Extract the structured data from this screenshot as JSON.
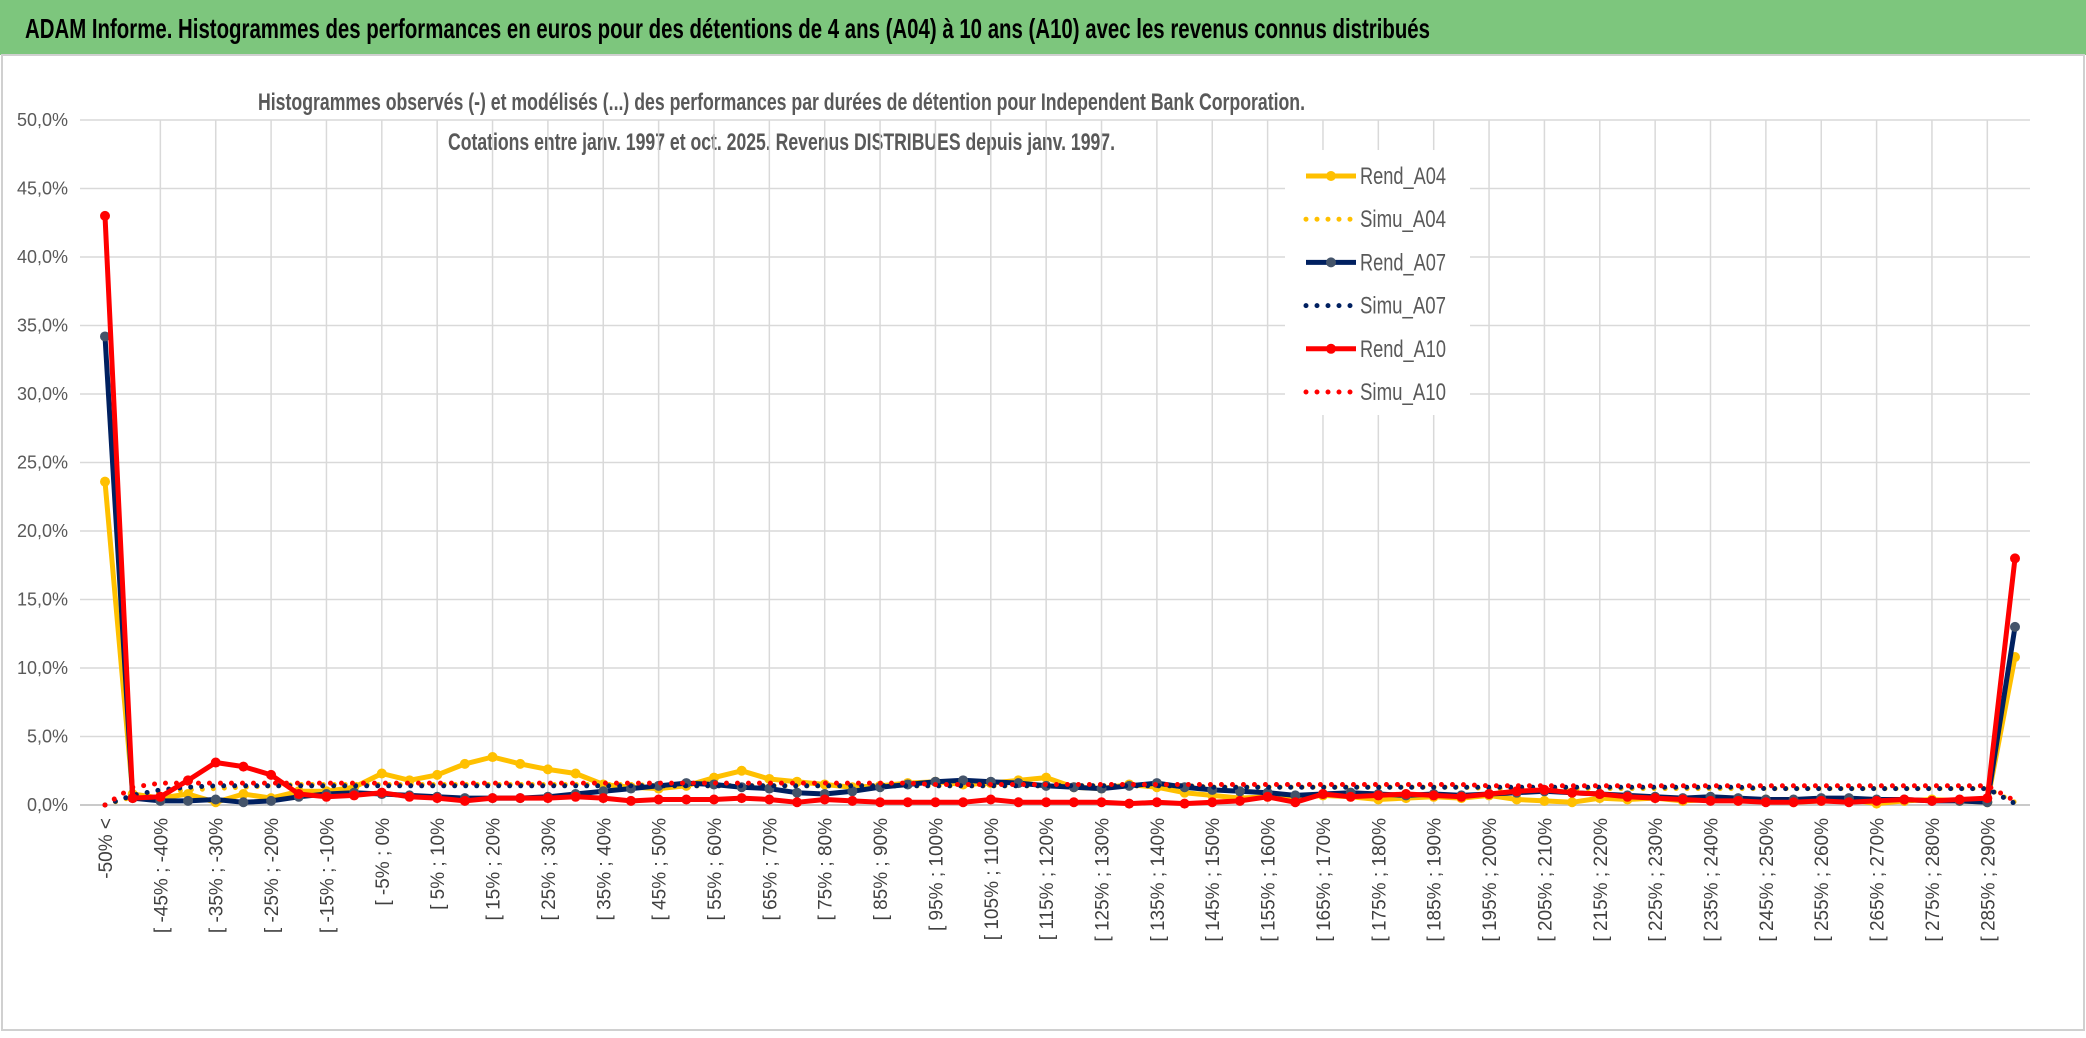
{
  "header": {
    "title": "ADAM Informe. Histogrammes des performances en euros pour des détentions de 4 ans (A04) à 10 ans (A10) avec les revenus connus distribués"
  },
  "chart_data": {
    "type": "line",
    "title": [
      "Histogrammes observés (-) et modélisés (...) des performances par durées de détention pour Independent Bank Corporation.",
      "Cotations entre janv. 1997 et oct. 2025. Revenus DISTRIBUES depuis janv. 1997."
    ],
    "categories": [
      "-50% <",
      null,
      "[ -45% ; -40%",
      null,
      "[ -35% ; -30%",
      null,
      "[ -25% ; -20%",
      null,
      "[ -15% ; -10%",
      null,
      "[ -5% ; 0%",
      null,
      "[ 5% ; 10%",
      null,
      "[ 15% ; 20%",
      null,
      "[ 25% ; 30%",
      null,
      "[ 35% ; 40%",
      null,
      "[ 45% ; 50%",
      null,
      "[ 55% ; 60%",
      null,
      "[ 65% ; 70%",
      null,
      "[ 75% ; 80%",
      null,
      "[ 85% ; 90%",
      null,
      "[ 95% ; 100%",
      null,
      "[ 105% ; 110%",
      null,
      "[ 115% ; 120%",
      null,
      "[ 125% ; 130%",
      null,
      "[ 135% ; 140%",
      null,
      "[ 145% ; 150%",
      null,
      "[ 155% ; 160%",
      null,
      "[ 165% ; 170%",
      null,
      "[ 175% ; 180%",
      null,
      "[ 185% ; 190%",
      null,
      "[ 195% ; 200%",
      null,
      "[ 205% ; 210%",
      null,
      "[ 215% ; 220%",
      null,
      "[ 225% ; 230%",
      null,
      "[ 235% ; 240%",
      null,
      "[ 245% ; 250%",
      null,
      "[ 255% ; 260%",
      null,
      "[ 265% ; 270%",
      null,
      "[ 275% ; 280%",
      null,
      "[ 285% ; 290%",
      null
    ],
    "series": [
      {
        "name": "Rend_A04",
        "color": "#ffc000",
        "line_style": "solid",
        "marker_color": "#ffc000",
        "values": [
          23.6,
          0.8,
          0.5,
          0.8,
          0.2,
          0.8,
          0.5,
          1.0,
          1.0,
          1.3,
          2.3,
          1.8,
          2.2,
          3.0,
          3.5,
          3.0,
          2.6,
          2.3,
          1.5,
          1.3,
          1.2,
          1.4,
          2.0,
          2.5,
          1.9,
          1.7,
          1.5,
          1.3,
          1.4,
          1.6,
          1.7,
          1.5,
          1.6,
          1.8,
          2.0,
          1.3,
          1.2,
          1.5,
          1.3,
          0.9,
          0.7,
          0.5,
          0.6,
          0.5,
          0.7,
          0.6,
          0.4,
          0.5,
          0.6,
          0.5,
          0.7,
          0.4,
          0.3,
          0.2,
          0.5,
          0.4,
          0.5,
          0.3,
          0.4,
          0.3,
          0.4,
          0.2,
          0.3,
          0.4,
          0.1,
          0.3,
          0.4,
          0.3,
          0.2,
          10.8
        ]
      },
      {
        "name": "Simu_A04",
        "color": "#ffc000",
        "line_style": "dotted",
        "values": [
          0,
          0.6,
          0.9,
          1.1,
          1.2,
          1.3,
          1.4,
          1.5,
          1.5,
          1.5,
          1.5,
          1.5,
          1.5,
          1.5,
          1.5,
          1.5,
          1.5,
          1.5,
          1.5,
          1.5,
          1.4,
          1.4,
          1.4,
          1.4,
          1.4,
          1.4,
          1.4,
          1.4,
          1.4,
          1.4,
          1.4,
          1.4,
          1.4,
          1.4,
          1.4,
          1.4,
          1.4,
          1.4,
          1.4,
          1.4,
          1.3,
          1.3,
          1.3,
          1.3,
          1.3,
          1.3,
          1.3,
          1.3,
          1.3,
          1.3,
          1.2,
          1.2,
          1.2,
          1.2,
          1.2,
          1.2,
          1.2,
          1.2,
          1.2,
          1.2,
          1.2,
          1.2,
          1.2,
          1.2,
          1.2,
          1.2,
          1.2,
          1.2,
          1.2,
          0.2
        ]
      },
      {
        "name": "Rend_A07",
        "color": "#002060",
        "line_style": "solid",
        "marker_color": "#44546a",
        "values": [
          34.2,
          0.5,
          0.3,
          0.3,
          0.4,
          0.2,
          0.3,
          0.6,
          0.8,
          0.9,
          0.8,
          0.7,
          0.6,
          0.5,
          0.5,
          0.5,
          0.6,
          0.8,
          1.0,
          1.2,
          1.4,
          1.6,
          1.5,
          1.3,
          1.2,
          0.9,
          0.8,
          1.0,
          1.3,
          1.5,
          1.7,
          1.8,
          1.7,
          1.6,
          1.4,
          1.3,
          1.2,
          1.4,
          1.6,
          1.3,
          1.1,
          1.0,
          0.9,
          0.7,
          0.8,
          0.9,
          0.8,
          0.7,
          0.8,
          0.7,
          0.8,
          0.9,
          1.0,
          0.9,
          0.8,
          0.7,
          0.6,
          0.5,
          0.6,
          0.5,
          0.4,
          0.4,
          0.5,
          0.5,
          0.4,
          0.4,
          0.3,
          0.3,
          0.2,
          13.0
        ]
      },
      {
        "name": "Simu_A07",
        "color": "#002060",
        "line_style": "dotted",
        "values": [
          0,
          0.7,
          1.1,
          1.3,
          1.4,
          1.4,
          1.4,
          1.4,
          1.4,
          1.4,
          1.4,
          1.4,
          1.4,
          1.4,
          1.4,
          1.4,
          1.4,
          1.4,
          1.4,
          1.4,
          1.4,
          1.4,
          1.4,
          1.4,
          1.4,
          1.4,
          1.4,
          1.4,
          1.4,
          1.4,
          1.4,
          1.4,
          1.4,
          1.4,
          1.4,
          1.4,
          1.4,
          1.4,
          1.4,
          1.4,
          1.3,
          1.3,
          1.3,
          1.3,
          1.3,
          1.3,
          1.3,
          1.3,
          1.3,
          1.3,
          1.3,
          1.3,
          1.3,
          1.3,
          1.3,
          1.3,
          1.3,
          1.3,
          1.3,
          1.3,
          1.2,
          1.2,
          1.2,
          1.2,
          1.2,
          1.2,
          1.2,
          1.2,
          1.2,
          0.1
        ]
      },
      {
        "name": "Rend_A10",
        "color": "#ff0000",
        "line_style": "solid",
        "marker_color": "#ff0000",
        "values": [
          43.0,
          0.5,
          0.6,
          1.8,
          3.1,
          2.8,
          2.2,
          0.8,
          0.6,
          0.7,
          0.9,
          0.6,
          0.5,
          0.3,
          0.5,
          0.5,
          0.5,
          0.6,
          0.5,
          0.3,
          0.4,
          0.4,
          0.4,
          0.5,
          0.4,
          0.2,
          0.4,
          0.3,
          0.2,
          0.2,
          0.2,
          0.2,
          0.4,
          0.2,
          0.2,
          0.2,
          0.2,
          0.1,
          0.2,
          0.1,
          0.2,
          0.3,
          0.6,
          0.2,
          0.8,
          0.6,
          0.7,
          0.8,
          0.7,
          0.6,
          0.8,
          1.0,
          1.1,
          0.9,
          0.8,
          0.6,
          0.5,
          0.4,
          0.3,
          0.3,
          0.2,
          0.2,
          0.3,
          0.2,
          0.3,
          0.4,
          0.3,
          0.4,
          0.5,
          18.0
        ]
      },
      {
        "name": "Simu_A10",
        "color": "#ff0000",
        "line_style": "dotted",
        "values": [
          0,
          1.3,
          1.6,
          1.6,
          1.6,
          1.6,
          1.6,
          1.6,
          1.6,
          1.6,
          1.6,
          1.6,
          1.6,
          1.6,
          1.6,
          1.6,
          1.6,
          1.6,
          1.6,
          1.6,
          1.6,
          1.6,
          1.6,
          1.6,
          1.6,
          1.6,
          1.6,
          1.6,
          1.6,
          1.6,
          1.5,
          1.5,
          1.5,
          1.5,
          1.5,
          1.5,
          1.5,
          1.5,
          1.5,
          1.5,
          1.5,
          1.5,
          1.5,
          1.5,
          1.5,
          1.5,
          1.5,
          1.5,
          1.5,
          1.5,
          1.4,
          1.4,
          1.4,
          1.4,
          1.4,
          1.4,
          1.4,
          1.4,
          1.4,
          1.4,
          1.4,
          1.4,
          1.4,
          1.4,
          1.4,
          1.4,
          1.4,
          1.4,
          1.4,
          0.3
        ]
      }
    ],
    "ylim": [
      0,
      50
    ],
    "yticks": [
      {
        "value": 0,
        "label": "0,0%"
      },
      {
        "value": 5,
        "label": "5,0%"
      },
      {
        "value": 10,
        "label": "10,0%"
      },
      {
        "value": 15,
        "label": "15,0%"
      },
      {
        "value": 20,
        "label": "20,0%"
      },
      {
        "value": 25,
        "label": "25,0%"
      },
      {
        "value": 30,
        "label": "30,0%"
      },
      {
        "value": 35,
        "label": "35,0%"
      },
      {
        "value": 40,
        "label": "40,0%"
      },
      {
        "value": 45,
        "label": "45,0%"
      },
      {
        "value": 50,
        "label": "50,0%"
      }
    ],
    "grid": true,
    "legend": "right"
  }
}
